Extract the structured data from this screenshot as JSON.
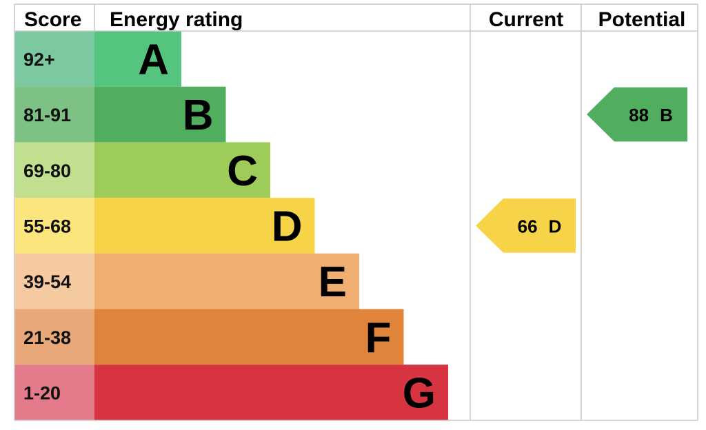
{
  "chart_data": {
    "type": "bar",
    "headers": {
      "score": "Score",
      "rating": "Energy rating",
      "current": "Current",
      "potential": "Potential"
    },
    "bands": [
      {
        "letter": "A",
        "range": "92+",
        "color": "#55c47e",
        "score_color": "#7cc9a0"
      },
      {
        "letter": "B",
        "range": "81-91",
        "color": "#52ae5f",
        "score_color": "#7dc184"
      },
      {
        "letter": "C",
        "range": "69-80",
        "color": "#9dcc5a",
        "score_color": "#c1e08f"
      },
      {
        "letter": "D",
        "range": "55-68",
        "color": "#f7d348",
        "score_color": "#fbe57d"
      },
      {
        "letter": "E",
        "range": "39-54",
        "color": "#f0ae70",
        "score_color": "#f6caa1"
      },
      {
        "letter": "F",
        "range": "21-38",
        "color": "#e0843b",
        "score_color": "#e8a879"
      },
      {
        "letter": "G",
        "range": "1-20",
        "color": "#d63441",
        "score_color": "#e37b8b"
      }
    ],
    "current": {
      "score": 66,
      "score_label": "66",
      "band": "D",
      "color": "#f7d348"
    },
    "potential": {
      "score": 88,
      "score_label": "88",
      "band": "B",
      "color": "#52ae5f"
    },
    "grid_color": "#c9c9c9"
  }
}
